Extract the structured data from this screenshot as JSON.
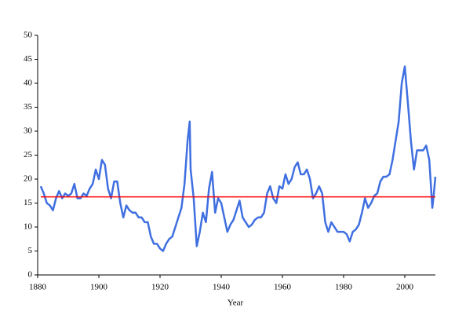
{
  "chart_data": {
    "type": "line",
    "x_label": "Year",
    "color": "#3f6fe0",
    "x": [
      1881,
      1882,
      1883,
      1884,
      1885,
      1886,
      1887,
      1888,
      1889,
      1890,
      1891,
      1892,
      1893,
      1894,
      1895,
      1896,
      1897,
      1898,
      1899,
      1900,
      1901,
      1902,
      1903,
      1904,
      1905,
      1906,
      1907,
      1908,
      1909,
      1910,
      1911,
      1912,
      1913,
      1914,
      1915,
      1916,
      1917,
      1918,
      1919,
      1920,
      1921,
      1922,
      1923,
      1924,
      1925,
      1926,
      1927,
      1928,
      1929,
      1929.7,
      1930,
      1931,
      1932,
      1933,
      1934,
      1935,
      1936,
      1937,
      1938,
      1939,
      1940,
      1941,
      1942,
      1943,
      1944,
      1945,
      1946,
      1947,
      1948,
      1949,
      1950,
      1951,
      1952,
      1953,
      1954,
      1955,
      1956,
      1957,
      1958,
      1959,
      1960,
      1961,
      1962,
      1963,
      1964,
      1965,
      1966,
      1967,
      1968,
      1969,
      1970,
      1971,
      1972,
      1973,
      1974,
      1975,
      1976,
      1977,
      1978,
      1979,
      1980,
      1981,
      1982,
      1983,
      1984,
      1985,
      1986,
      1987,
      1988,
      1989,
      1990,
      1991,
      1992,
      1993,
      1994,
      1995,
      1996,
      1997,
      1998,
      1999,
      2000,
      2001,
      2002,
      2003,
      2004,
      2005,
      2006,
      2007,
      2008,
      2009,
      2009.5,
      2010
    ],
    "values": [
      18.5,
      17,
      15,
      14.5,
      13.5,
      16,
      17.5,
      16,
      17,
      16.5,
      17,
      19,
      16,
      16,
      17,
      16.5,
      18,
      19,
      22,
      20,
      24,
      23,
      18,
      16,
      19.5,
      19.5,
      15,
      12,
      14.5,
      13.5,
      13,
      13,
      12,
      12,
      11,
      11,
      8,
      6.5,
      6.5,
      5.5,
      5,
      6.5,
      7.5,
      8,
      10,
      12,
      14,
      19,
      28,
      32,
      22,
      16,
      6,
      9,
      13,
      11,
      18,
      21.5,
      13,
      16,
      15,
      12,
      9,
      10.5,
      11.5,
      13.5,
      15.5,
      12,
      11,
      10,
      10.5,
      11.5,
      12,
      12,
      13,
      17,
      18.5,
      16,
      15,
      18.5,
      18,
      21,
      19,
      20,
      22.5,
      23.5,
      21,
      21,
      22,
      20,
      16,
      17,
      18.5,
      17,
      11,
      9,
      11,
      10,
      9,
      9,
      9,
      8.5,
      7,
      9,
      9.5,
      10.5,
      13,
      16,
      14,
      15,
      16.5,
      17,
      19.5,
      20.5,
      20.5,
      21,
      24,
      28,
      32,
      40,
      43.5,
      36,
      28,
      22,
      26,
      26,
      26,
      27,
      24,
      14,
      17,
      20.5
    ],
    "mean_line": {
      "value": 16.3,
      "color": "#ff0000"
    },
    "xlim": [
      1880,
      2010
    ],
    "xticks": [
      1880,
      1900,
      1920,
      1940,
      1960,
      1980,
      2000
    ],
    "ylim": [
      0,
      50
    ],
    "yticks": [
      0,
      5,
      10,
      15,
      20,
      25,
      30,
      35,
      40,
      45,
      50
    ]
  }
}
